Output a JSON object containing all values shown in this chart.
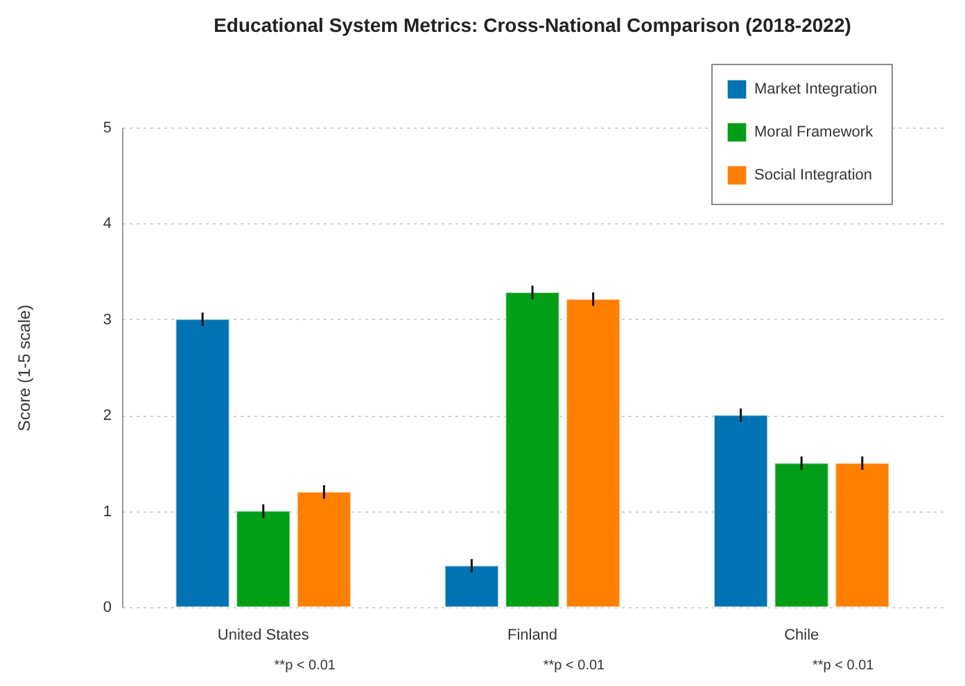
{
  "chart_data": {
    "type": "bar",
    "title": "Educational System Metrics: Cross-National Comparison (2018-2022)",
    "ylabel": "Score (1-5 scale)",
    "categories": [
      "United States",
      "Finland",
      "Chile"
    ],
    "series": [
      {
        "name": "Market Integration",
        "color": "#0173b2",
        "values": [
          3.0,
          0.43,
          2.0
        ],
        "errors": [
          0.07,
          0.07,
          0.07
        ]
      },
      {
        "name": "Moral Framework",
        "color": "#029e18",
        "values": [
          1.0,
          3.28,
          1.5
        ],
        "errors": [
          0.07,
          0.07,
          0.07
        ]
      },
      {
        "name": "Social Integration",
        "color": "#ff7f00",
        "values": [
          1.2,
          3.21,
          1.5
        ],
        "errors": [
          0.07,
          0.07,
          0.07
        ]
      }
    ],
    "annotations": [
      "**p < 0.01",
      "**p < 0.01",
      "**p < 0.01"
    ],
    "ylim": [
      0,
      5
    ],
    "yticks": [
      0,
      1,
      2,
      3,
      4,
      5
    ],
    "grid": "y",
    "legend": "top right"
  }
}
